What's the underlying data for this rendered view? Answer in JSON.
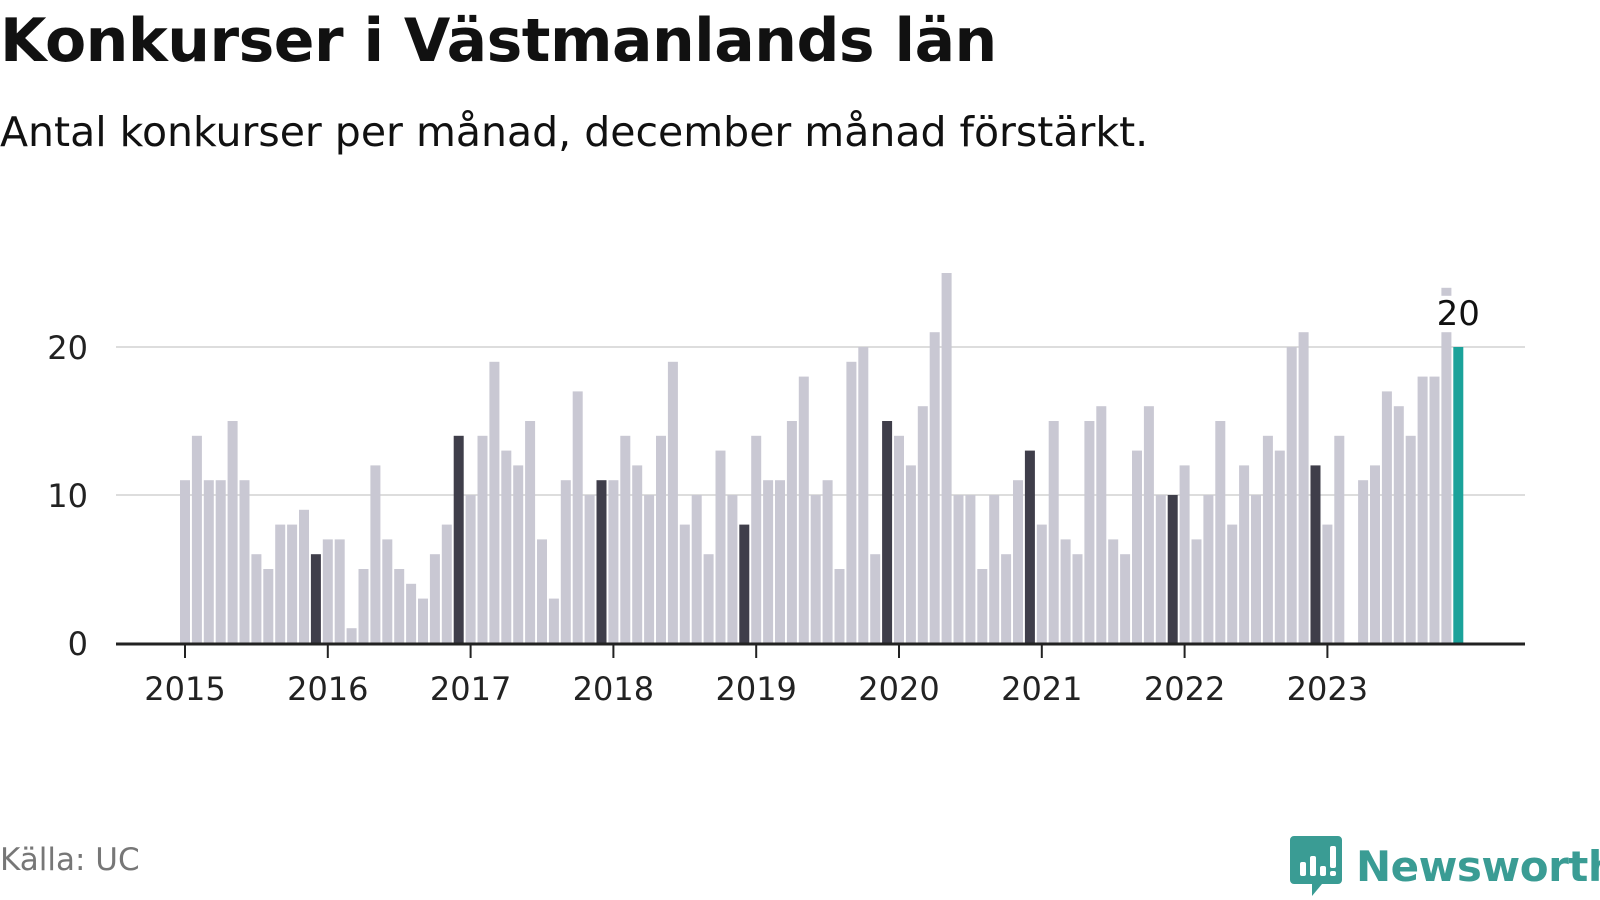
{
  "title": "Konkurser i Västmanlands län",
  "subtitle": "Antal konkurser per månad, december månad förstärkt.",
  "source": "Källa: UC",
  "brand": {
    "name": "Newsworthy",
    "icon": "newsworthy-logo-icon"
  },
  "colors": {
    "bar_default": "#c9c8d3",
    "bar_december": "#3f3e4a",
    "bar_latest": "#1ba29a",
    "gridline": "#dddddd",
    "axis": "#222222",
    "brand": "#3a9c94"
  },
  "chart_data": {
    "type": "bar",
    "title": "Konkurser i Västmanlands län",
    "subtitle": "Antal konkurser per månad, december månad förstärkt.",
    "xlabel": "",
    "ylabel": "",
    "ylim": [
      0,
      25
    ],
    "yticks": [
      0,
      10,
      20
    ],
    "grid": true,
    "year_labels": [
      "2015",
      "2016",
      "2017",
      "2018",
      "2019",
      "2020",
      "2021",
      "2022",
      "2023"
    ],
    "start_month": "2015-01",
    "end_month": "2023-12",
    "highlight": "december",
    "latest_label": "20",
    "values": [
      11,
      14,
      11,
      11,
      15,
      11,
      6,
      5,
      8,
      8,
      9,
      6,
      7,
      7,
      1,
      5,
      12,
      7,
      5,
      4,
      3,
      6,
      8,
      14,
      10,
      14,
      19,
      13,
      12,
      15,
      7,
      3,
      11,
      17,
      10,
      11,
      11,
      14,
      12,
      10,
      14,
      19,
      8,
      10,
      6,
      13,
      10,
      8,
      14,
      11,
      11,
      15,
      18,
      10,
      11,
      5,
      19,
      20,
      6,
      15,
      14,
      12,
      16,
      21,
      25,
      10,
      10,
      5,
      10,
      6,
      11,
      13,
      8,
      15,
      7,
      6,
      15,
      16,
      7,
      6,
      13,
      16,
      10,
      10,
      12,
      7,
      10,
      15,
      8,
      12,
      10,
      14,
      13,
      20,
      21,
      12,
      8,
      14,
      0,
      11,
      12,
      17,
      16,
      14,
      18,
      18,
      21,
      20
    ],
    "prev_year_markers": [
      null,
      null,
      null,
      null,
      null,
      null,
      null,
      null,
      null,
      null,
      24,
      null
    ]
  }
}
